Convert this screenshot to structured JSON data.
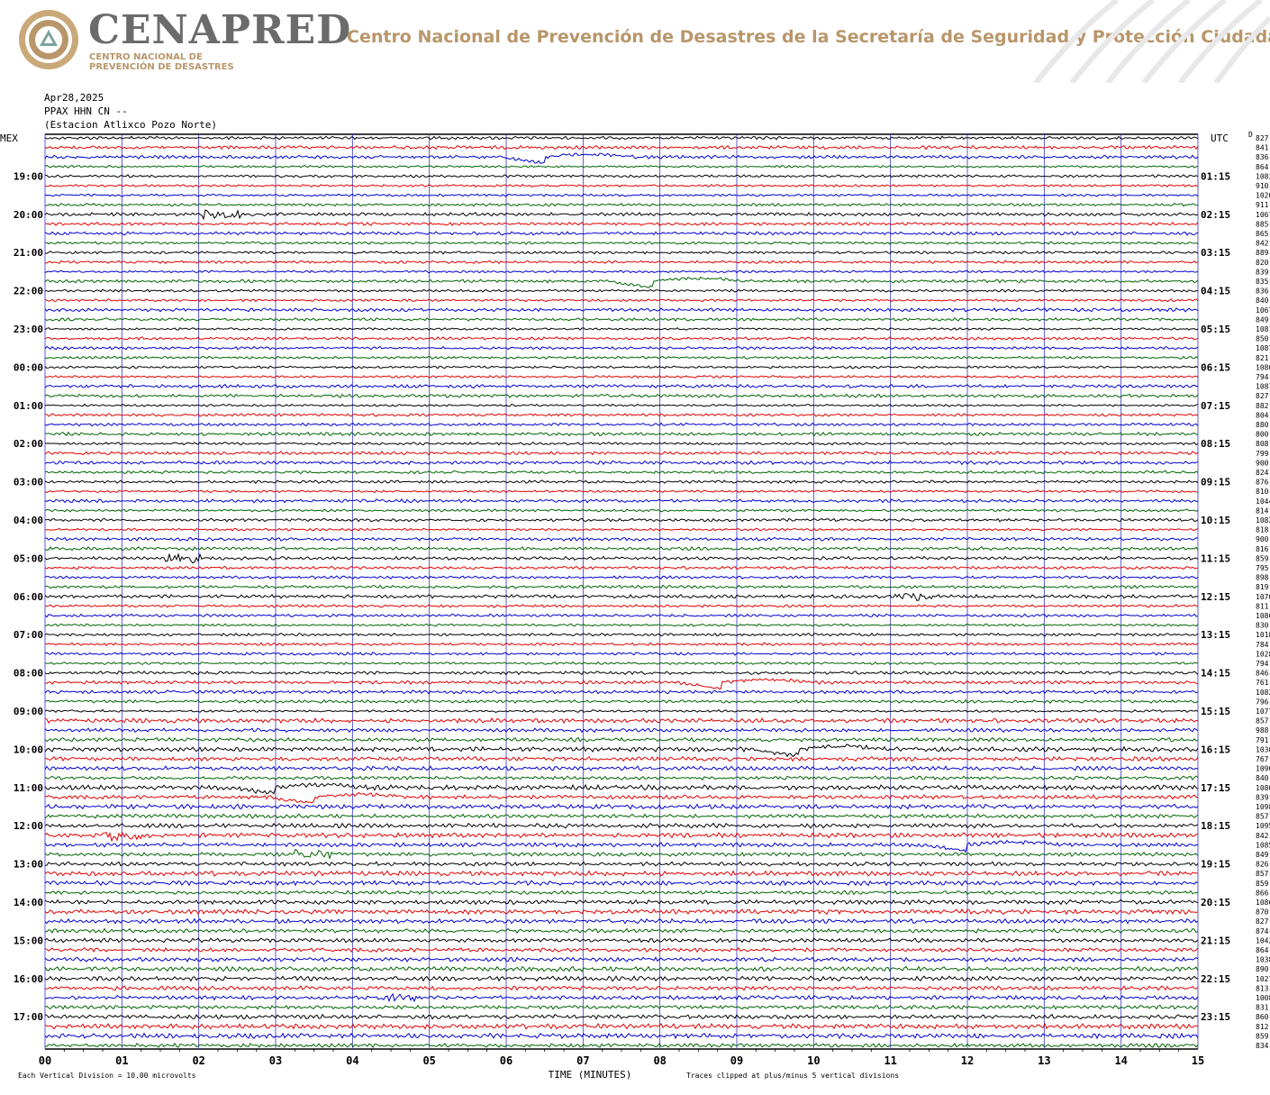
{
  "header": {
    "brand": "CENAPRED",
    "brand_sub_1": "CENTRO NACIONAL DE",
    "brand_sub_2": "PREVENCIÓN DE DESASTRES",
    "org": "Centro Nacional de Prevención de Desastres de la Secretaría de Seguridad y Protección Ciudadana"
  },
  "meta": {
    "date": "Apr28,2025",
    "station_code": "PPAX HHN CN --",
    "station_name": "(Estacion Atlixco Pozo Norte)"
  },
  "colors": {
    "trace_cycle": [
      "#000000",
      "#e00000",
      "#0000d0",
      "#006400"
    ],
    "grid": "#3333cc",
    "brand_gold": "#b8966a"
  },
  "chart_data": {
    "type": "line",
    "title": "PPAX HHN CN --",
    "xlabel": "TIME (MINUTES)",
    "ylabel": "",
    "xlim": [
      0,
      15
    ],
    "x_ticks": [
      "00",
      "01",
      "02",
      "03",
      "04",
      "05",
      "06",
      "07",
      "08",
      "09",
      "10",
      "11",
      "12",
      "13",
      "14",
      "15"
    ],
    "left_axis_title": "MEX",
    "right_axis_title": "UTC",
    "left_hour_labels": [
      "19:00",
      "20:00",
      "21:00",
      "22:00",
      "23:00",
      "00:00",
      "01:00",
      "02:00",
      "03:00",
      "04:00",
      "05:00",
      "06:00",
      "07:00",
      "08:00",
      "09:00",
      "10:00",
      "11:00",
      "12:00",
      "13:00",
      "14:00",
      "15:00",
      "16:00",
      "17:00"
    ],
    "right_hour_labels": [
      "01:15",
      "02:15",
      "03:15",
      "04:15",
      "05:15",
      "06:15",
      "07:15",
      "08:15",
      "09:15",
      "10:15",
      "11:15",
      "12:15",
      "13:15",
      "14:15",
      "15:15",
      "16:15",
      "17:15",
      "18:15",
      "19:15",
      "20:15",
      "21:15",
      "22:15",
      "23:15"
    ],
    "trace_count": 96,
    "trace_colors": [
      "black",
      "red",
      "blue",
      "green"
    ],
    "right_counts": [
      "827",
      "841",
      "836",
      "864",
      "1083",
      "910",
      "1020",
      "911",
      "1067",
      "885",
      "865",
      "842",
      "889",
      "820",
      "839",
      "835",
      "836",
      "840",
      "1067",
      "849",
      "1081",
      "850",
      "1087",
      "821",
      "1080",
      "794",
      "1087",
      "827",
      "882",
      "804",
      "880",
      "800",
      "808",
      "799",
      "900",
      "824",
      "876",
      "810",
      "1044",
      "814",
      "1082",
      "818",
      "900",
      "816",
      "859",
      "795",
      "898",
      "819",
      "1070",
      "811",
      "1086",
      "830",
      "1018",
      "784",
      "1028",
      "794",
      "846",
      "761",
      "1082",
      "796",
      "1077",
      "857",
      "988",
      "791",
      "1030",
      "767",
      "1090",
      "840",
      "1080",
      "839",
      "1098",
      "857",
      "1095",
      "842",
      "1085",
      "849",
      "826",
      "857",
      "859",
      "866",
      "1086",
      "870",
      "827",
      "874",
      "1042",
      "864",
      "1038",
      "890",
      "1027",
      "813",
      "1008",
      "831",
      "860",
      "812",
      "859",
      "834"
    ],
    "events": [
      {
        "trace": 2,
        "minute": 6.5,
        "type": "dip"
      },
      {
        "trace": 8,
        "minute": 2.3,
        "type": "burst"
      },
      {
        "trace": 15,
        "minute": 7.9,
        "type": "dip"
      },
      {
        "trace": 44,
        "minute": 1.8,
        "type": "burst"
      },
      {
        "trace": 48,
        "minute": 11.3,
        "type": "burst"
      },
      {
        "trace": 57,
        "minute": 8.8,
        "type": "dip"
      },
      {
        "trace": 64,
        "minute": 9.8,
        "type": "dip"
      },
      {
        "trace": 68,
        "minute": 3.0,
        "type": "dip"
      },
      {
        "trace": 69,
        "minute": 3.5,
        "type": "dip"
      },
      {
        "trace": 73,
        "minute": 1.0,
        "type": "burst"
      },
      {
        "trace": 74,
        "minute": 12.0,
        "type": "dip"
      },
      {
        "trace": 75,
        "minute": 3.5,
        "type": "burst"
      },
      {
        "trace": 90,
        "minute": 4.6,
        "type": "burst"
      }
    ],
    "footnote_left": "Each Vertical Division =  10.00 microvolts",
    "footnote_right": "Traces clipped at plus/minus 5 vertical divisions",
    "grid": true
  }
}
